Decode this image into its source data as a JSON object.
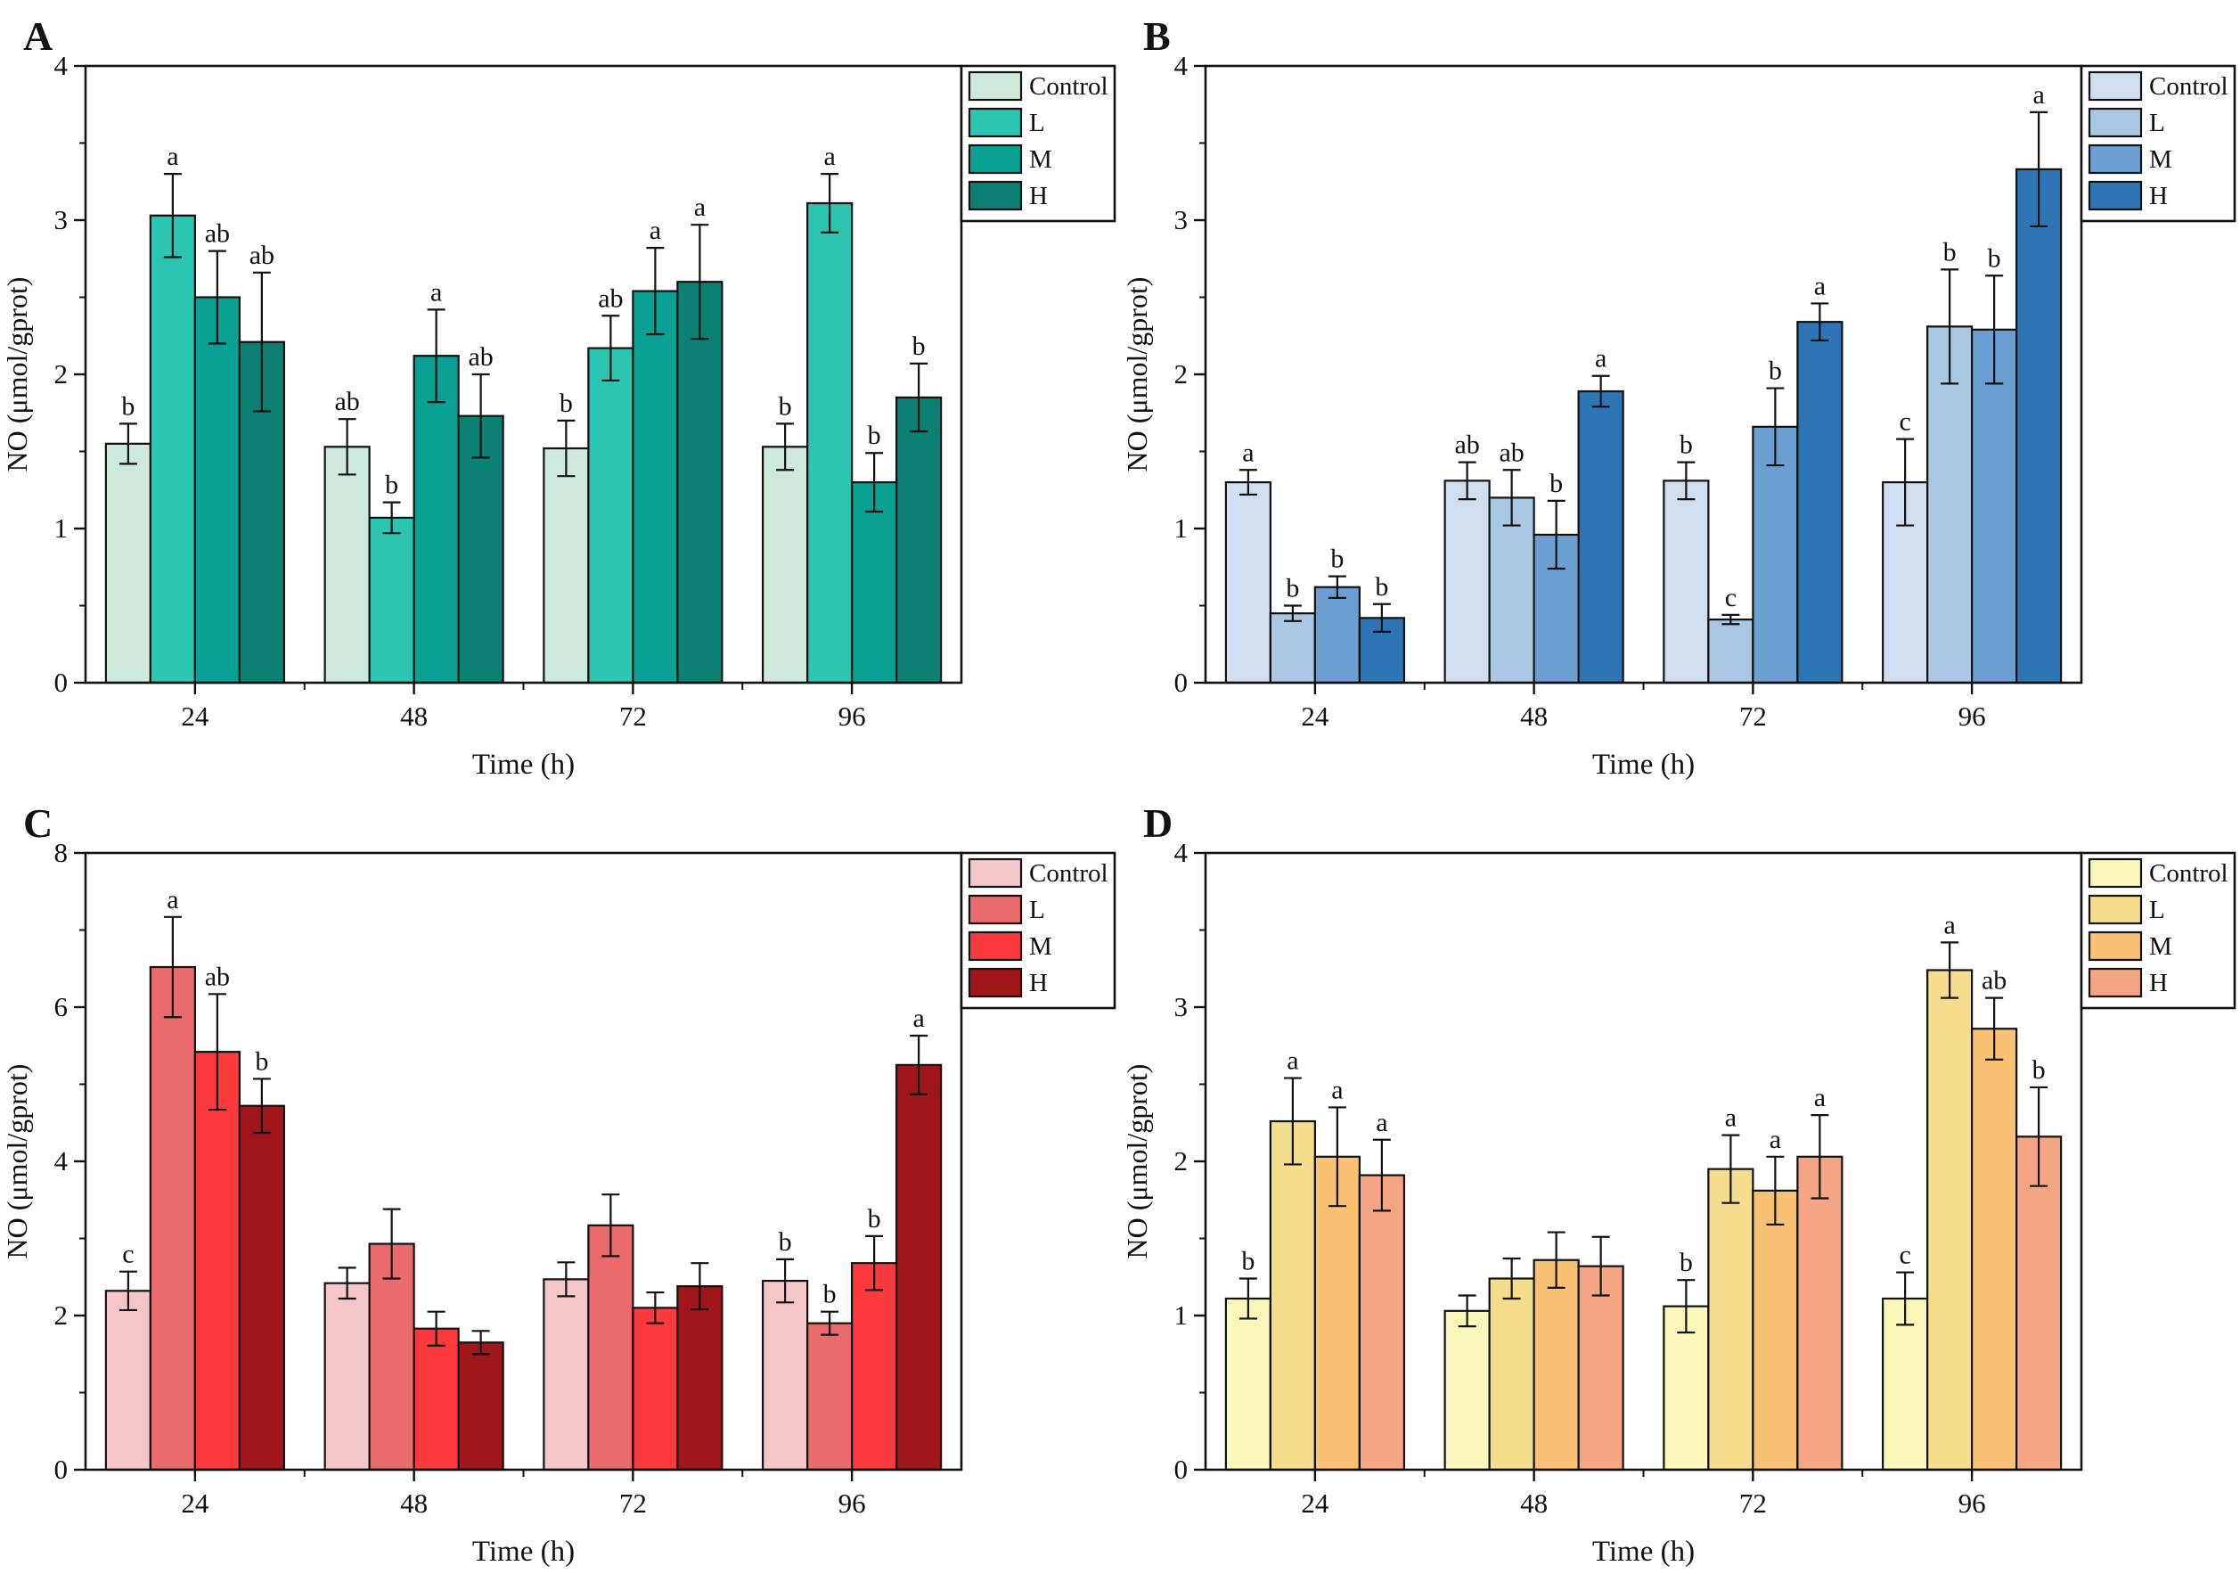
{
  "figure": {
    "ylabel": "NO (μmol/gprot)",
    "xlabel": "Time (h)",
    "legend_labels": [
      "Control",
      "L",
      "M",
      "H"
    ],
    "axis_color": "#111111"
  },
  "chart_data": [
    {
      "type": "bar",
      "panel_label": "A",
      "title": "",
      "ylabel": "NO (μmol/gprot)",
      "xlabel": "Time (h)",
      "ylim": [
        0,
        4
      ],
      "yticks": [
        0,
        1,
        2,
        3,
        4
      ],
      "y_minor_step": 0.5,
      "grid": false,
      "legend_position": "top-right-outside",
      "categories": [
        "24",
        "48",
        "72",
        "96"
      ],
      "series": [
        {
          "name": "Control",
          "color": "#cde9dc",
          "values": [
            1.55,
            1.53,
            1.52,
            1.53
          ],
          "errors": [
            0.13,
            0.18,
            0.18,
            0.15
          ],
          "letters": [
            "b",
            "ab",
            "b",
            "b"
          ]
        },
        {
          "name": "L",
          "color": "#2cc5b1",
          "values": [
            3.03,
            1.07,
            2.17,
            3.11
          ],
          "errors": [
            0.27,
            0.1,
            0.21,
            0.19
          ],
          "letters": [
            "a",
            "b",
            "ab",
            "a"
          ]
        },
        {
          "name": "M",
          "color": "#0aa093",
          "values": [
            2.5,
            2.12,
            2.54,
            1.3
          ],
          "errors": [
            0.3,
            0.3,
            0.28,
            0.19
          ],
          "letters": [
            "ab",
            "a",
            "a",
            "b"
          ]
        },
        {
          "name": "H",
          "color": "#0b8073",
          "values": [
            2.21,
            1.73,
            2.6,
            1.85
          ],
          "errors": [
            0.45,
            0.27,
            0.37,
            0.22
          ],
          "letters": [
            "ab",
            "ab",
            "a",
            "b"
          ]
        }
      ]
    },
    {
      "type": "bar",
      "panel_label": "B",
      "title": "",
      "ylabel": "NO (μmol/gprot)",
      "xlabel": "Time (h)",
      "ylim": [
        0,
        4
      ],
      "yticks": [
        0,
        1,
        2,
        3,
        4
      ],
      "y_minor_step": 0.5,
      "grid": false,
      "legend_position": "top-right-outside",
      "categories": [
        "24",
        "48",
        "72",
        "96"
      ],
      "series": [
        {
          "name": "Control",
          "color": "#d0def0",
          "values": [
            1.3,
            1.31,
            1.31,
            1.3
          ],
          "errors": [
            0.08,
            0.12,
            0.12,
            0.28
          ],
          "letters": [
            "a",
            "ab",
            "b",
            "c"
          ]
        },
        {
          "name": "L",
          "color": "#a9c7e3",
          "values": [
            0.45,
            1.2,
            0.41,
            2.31
          ],
          "errors": [
            0.05,
            0.18,
            0.03,
            0.37
          ],
          "letters": [
            "b",
            "ab",
            "c",
            "b"
          ]
        },
        {
          "name": "M",
          "color": "#6b9fd1",
          "values": [
            0.62,
            0.96,
            1.66,
            2.29
          ],
          "errors": [
            0.07,
            0.22,
            0.25,
            0.35
          ],
          "letters": [
            "b",
            "b",
            "b",
            "b"
          ]
        },
        {
          "name": "H",
          "color": "#2e75b6",
          "values": [
            0.42,
            1.89,
            2.34,
            3.33
          ],
          "errors": [
            0.09,
            0.1,
            0.12,
            0.37
          ],
          "letters": [
            "b",
            "a",
            "a",
            "a"
          ]
        }
      ]
    },
    {
      "type": "bar",
      "panel_label": "C",
      "title": "",
      "ylabel": "NO (μmol/gprot)",
      "xlabel": "Time (h)",
      "ylim": [
        0,
        8
      ],
      "yticks": [
        0,
        2,
        4,
        6,
        8
      ],
      "y_minor_step": 1,
      "grid": false,
      "legend_position": "top-right-outside",
      "categories": [
        "24",
        "48",
        "72",
        "96"
      ],
      "series": [
        {
          "name": "Control",
          "color": "#f4c6c9",
          "values": [
            2.32,
            2.42,
            2.47,
            2.45
          ],
          "errors": [
            0.25,
            0.2,
            0.22,
            0.28
          ],
          "letters": [
            "c",
            "",
            "",
            "b"
          ]
        },
        {
          "name": "L",
          "color": "#ea6b6d",
          "values": [
            6.52,
            2.93,
            3.17,
            1.9
          ],
          "errors": [
            0.65,
            0.45,
            0.4,
            0.15
          ],
          "letters": [
            "a",
            "",
            "",
            "b"
          ]
        },
        {
          "name": "M",
          "color": "#fb3a3d",
          "values": [
            5.42,
            1.83,
            2.1,
            2.68
          ],
          "errors": [
            0.75,
            0.22,
            0.2,
            0.35
          ],
          "letters": [
            "ab",
            "",
            "",
            "b"
          ]
        },
        {
          "name": "H",
          "color": "#9f171b",
          "values": [
            4.72,
            1.65,
            2.38,
            5.25
          ],
          "errors": [
            0.35,
            0.15,
            0.3,
            0.38
          ],
          "letters": [
            "b",
            "",
            "",
            "a"
          ]
        }
      ]
    },
    {
      "type": "bar",
      "panel_label": "D",
      "title": "",
      "ylabel": "NO (μmol/gprot)",
      "xlabel": "Time (h)",
      "ylim": [
        0,
        4
      ],
      "yticks": [
        0,
        1,
        2,
        3,
        4
      ],
      "y_minor_step": 0.5,
      "grid": false,
      "legend_position": "top-right-outside",
      "categories": [
        "24",
        "48",
        "72",
        "96"
      ],
      "series": [
        {
          "name": "Control",
          "color": "#faf7bb",
          "values": [
            1.11,
            1.03,
            1.06,
            1.11
          ],
          "errors": [
            0.13,
            0.1,
            0.17,
            0.17
          ],
          "letters": [
            "b",
            "",
            "b",
            "c"
          ]
        },
        {
          "name": "L",
          "color": "#f6dc8d",
          "values": [
            2.26,
            1.24,
            1.95,
            3.24
          ],
          "errors": [
            0.28,
            0.13,
            0.22,
            0.18
          ],
          "letters": [
            "a",
            "",
            "a",
            "a"
          ]
        },
        {
          "name": "M",
          "color": "#f8c173",
          "values": [
            2.03,
            1.36,
            1.81,
            2.86
          ],
          "errors": [
            0.32,
            0.18,
            0.22,
            0.2
          ],
          "letters": [
            "a",
            "",
            "a",
            "ab"
          ]
        },
        {
          "name": "H",
          "color": "#f3a584",
          "values": [
            1.91,
            1.32,
            2.03,
            2.16
          ],
          "errors": [
            0.23,
            0.19,
            0.27,
            0.32
          ],
          "letters": [
            "a",
            "",
            "a",
            "b"
          ]
        }
      ]
    }
  ]
}
